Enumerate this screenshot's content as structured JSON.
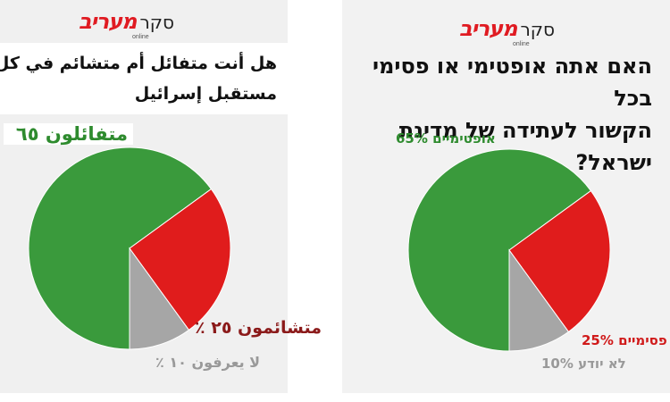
{
  "left": {
    "logo_brand": "מעריב",
    "logo_sub": "online",
    "logo_poll": "סקר",
    "title_line1": "هل أنت متفائل أم متشائم في كل ما يخص",
    "title_line2": "مستقبل إسرائيل",
    "labels": [
      "متفائلون ٦٥",
      "متشائمون ٢٥ ٪",
      "لا يعرفون ١٠ ٪"
    ]
  },
  "right": {
    "logo_brand": "מעריב",
    "logo_sub": "online",
    "logo_poll": "סקר",
    "title_line1": "האם אתה אופטימי או פסימי בכל",
    "title_line2": "הקשור לעתידה של מדינת ישראל?",
    "labels": [
      "אופטימיים 65%",
      "פסימיים 25%",
      "לא יודע 10%"
    ]
  },
  "colors": {
    "optimists": "#3a9a3c",
    "pessimists": "#e01c1c",
    "dontknow": "#a6a6a6",
    "label_green": "#2e8b2e",
    "label_red_left": "#8b1a1a",
    "label_red_right": "#d01a1a",
    "label_gray": "#999999"
  },
  "chart_data": [
    {
      "type": "pie",
      "categories": [
        "متفائلون",
        "متشائمون",
        "لا يعرفون"
      ],
      "values": [
        65,
        25,
        10
      ]
    },
    {
      "type": "pie",
      "categories": [
        "אופטימיים",
        "פסימיים",
        "לא יודע"
      ],
      "values": [
        65,
        25,
        10
      ]
    }
  ]
}
